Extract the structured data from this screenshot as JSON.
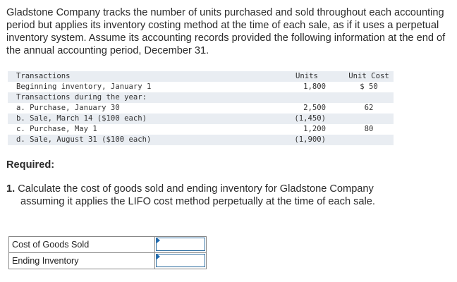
{
  "intro": "Gladstone Company tracks the number of units purchased and sold throughout each accounting period but applies its inventory costing method at the time of each sale, as if it uses a perpetual inventory system. Assume its accounting records provided the following information at the end of the annual accounting period, December 31.",
  "table": {
    "headers": {
      "label": "Transactions",
      "units": "Units",
      "cost": "Unit Cost"
    },
    "rows": [
      {
        "label": "Beginning inventory, January 1",
        "units": "1,800",
        "cost": "$ 50"
      },
      {
        "label": "Transactions during the year:",
        "units": "",
        "cost": ""
      },
      {
        "label": "a. Purchase, January 30",
        "units": "2,500",
        "cost": "62"
      },
      {
        "label": "b. Sale, March 14 ($100 each)",
        "units": "(1,450)",
        "cost": ""
      },
      {
        "label": "c. Purchase, May 1",
        "units": "1,200",
        "cost": "80"
      },
      {
        "label": "d. Sale, August 31 ($100 each)",
        "units": "(1,900)",
        "cost": ""
      }
    ]
  },
  "required_label": "Required:",
  "question": {
    "number": "1.",
    "line1": "Calculate the cost of goods sold and ending inventory for Gladstone Company",
    "line2": "assuming it applies the LIFO cost method perpetually at the time of each sale."
  },
  "answers": [
    {
      "label": "Cost of Goods Sold",
      "value": ""
    },
    {
      "label": "Ending Inventory",
      "value": ""
    }
  ]
}
